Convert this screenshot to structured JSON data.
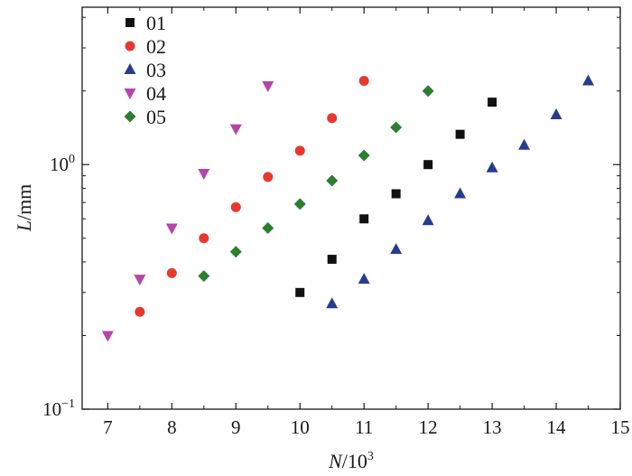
{
  "chart_data": {
    "type": "scatter",
    "xlabel": {
      "var": "N",
      "unit": "/10",
      "exp": "3"
    },
    "ylabel": {
      "var": "L",
      "unit": "/mm"
    },
    "x_ticks": [
      "7",
      "8",
      "9",
      "10",
      "11",
      "12",
      "13",
      "14",
      "15"
    ],
    "y_ticks": [
      {
        "value": 1,
        "base": "10",
        "exp": "0"
      },
      {
        "value": 0.1,
        "base": "10",
        "exp": "−1"
      }
    ],
    "xlim": [
      6.6,
      15
    ],
    "ylim": [
      0.1,
      4.4
    ],
    "yscale": "log",
    "grid": false,
    "legend_position": "top-left",
    "series": [
      {
        "name": "01",
        "marker": "square",
        "color": "#111111",
        "points": [
          [
            10,
            0.3
          ],
          [
            10.5,
            0.41
          ],
          [
            11,
            0.6
          ],
          [
            11.5,
            0.76
          ],
          [
            12,
            1.0
          ],
          [
            12.5,
            1.33
          ],
          [
            13,
            1.8
          ]
        ]
      },
      {
        "name": "02",
        "marker": "circle",
        "color": "#e8382e",
        "points": [
          [
            7.5,
            0.25
          ],
          [
            8,
            0.36
          ],
          [
            8.5,
            0.5
          ],
          [
            9,
            0.67
          ],
          [
            9.5,
            0.89
          ],
          [
            10,
            1.14
          ],
          [
            10.5,
            1.55
          ],
          [
            11,
            2.2
          ]
        ]
      },
      {
        "name": "03",
        "marker": "triangle-up",
        "color": "#283c8e",
        "points": [
          [
            10.5,
            0.27
          ],
          [
            11,
            0.34
          ],
          [
            11.5,
            0.45
          ],
          [
            12,
            0.59
          ],
          [
            12.5,
            0.76
          ],
          [
            13,
            0.97
          ],
          [
            13.5,
            1.2
          ],
          [
            14,
            1.6
          ],
          [
            14.5,
            2.2
          ]
        ]
      },
      {
        "name": "04",
        "marker": "triangle-down",
        "color": "#b545a8",
        "points": [
          [
            7,
            0.2
          ],
          [
            7.5,
            0.34
          ],
          [
            8,
            0.55
          ],
          [
            8.5,
            0.92
          ],
          [
            9,
            1.4
          ],
          [
            9.5,
            2.1
          ]
        ]
      },
      {
        "name": "05",
        "marker": "diamond",
        "color": "#2e7d32",
        "points": [
          [
            8.5,
            0.35
          ],
          [
            9,
            0.44
          ],
          [
            9.5,
            0.55
          ],
          [
            10,
            0.69
          ],
          [
            10.5,
            0.86
          ],
          [
            11,
            1.09
          ],
          [
            11.5,
            1.42
          ],
          [
            12,
            2.0
          ]
        ]
      }
    ]
  }
}
